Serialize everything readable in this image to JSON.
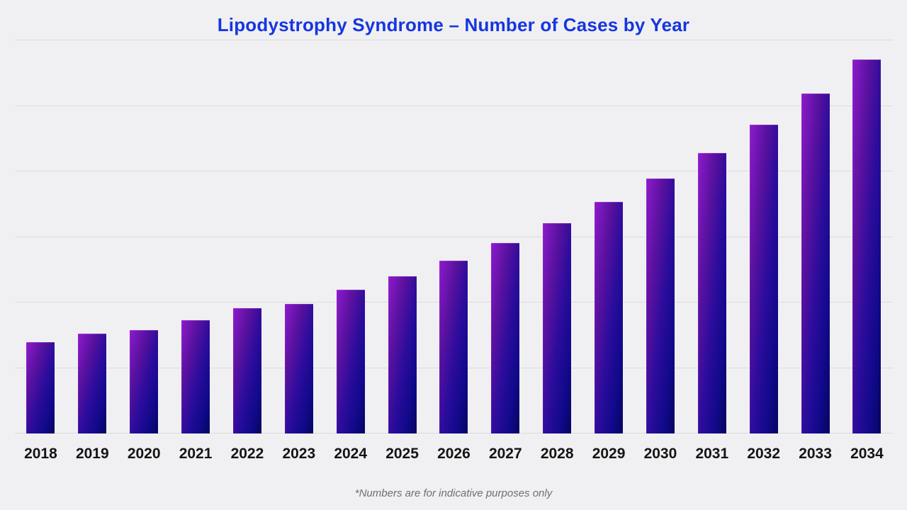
{
  "page": {
    "background_color": "#f0f0f2"
  },
  "title": {
    "text": "Lipodystrophy Syndrome – Number of Cases by Year",
    "color": "#1636df"
  },
  "footnote": {
    "text": "*Numbers are for indicative purposes only",
    "color": "#6f6f6f"
  },
  "chart_data": {
    "type": "bar",
    "title": "Lipodystrophy Syndrome – Number of Cases by Year",
    "categories": [
      "2018",
      "2019",
      "2020",
      "2021",
      "2022",
      "2023",
      "2024",
      "2025",
      "2026",
      "2027",
      "2028",
      "2029",
      "2030",
      "2031",
      "2032",
      "2033",
      "2034"
    ],
    "values": [
      1.39,
      1.52,
      1.58,
      1.73,
      1.91,
      1.98,
      2.19,
      2.4,
      2.64,
      2.91,
      3.21,
      3.53,
      3.89,
      4.28,
      4.71,
      5.19,
      5.71
    ],
    "value_units": "gridline intervals (y-axis has no tick labels; 6 gridline intervals span the plot)",
    "xlabel": "",
    "ylabel": "",
    "ylim": [
      0,
      6
    ],
    "grid": true,
    "legend_visible": false,
    "gridline_color": "#dcdcdf",
    "x_tick_color": "#141414",
    "bar_gradient": [
      "#8e1bcd",
      "#5a119f",
      "#2b0c9c",
      "#10098a",
      "#06055f"
    ]
  }
}
